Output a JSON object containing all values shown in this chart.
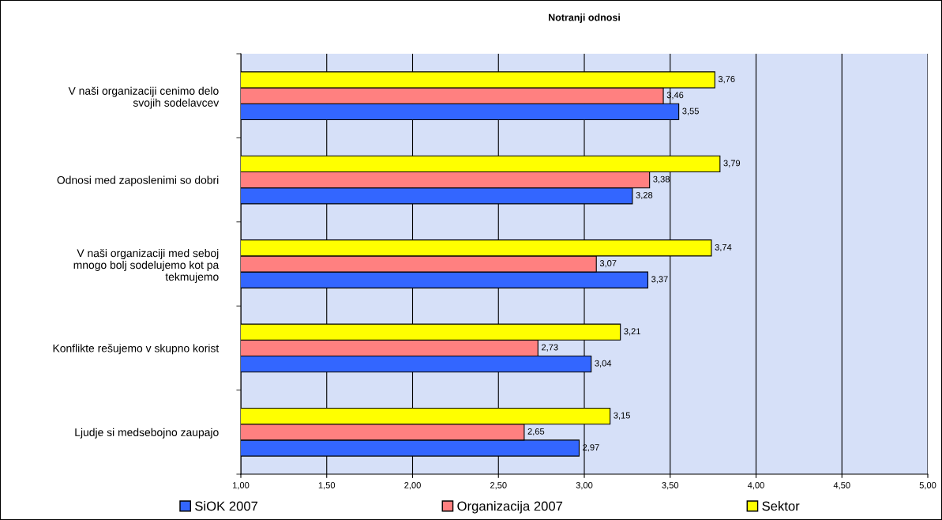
{
  "chart_data": {
    "type": "bar",
    "orientation": "horizontal",
    "title": "Notranji odnosi",
    "categories": [
      "V naši organizaciji cenimo delo\nsvojih sodelavcev",
      "Odnosi med zaposlenimi so dobri",
      "V naši organizaciji med seboj\nmnogo bolj sodelujemo kot pa\ntekmujemo",
      "Konflikte rešujemo v skupno korist",
      "Ljudje si medsebojno zaupajo"
    ],
    "series": [
      {
        "name": "SiOK 2007",
        "color": "#3366ff",
        "values": [
          3.55,
          3.28,
          3.37,
          3.04,
          2.97
        ],
        "value_labels": [
          "3,55",
          "3,28",
          "3,37",
          "3,04",
          "2,97"
        ]
      },
      {
        "name": "Organizacija 2007",
        "color": "#ff8080",
        "values": [
          3.46,
          3.38,
          3.07,
          2.73,
          2.65
        ],
        "value_labels": [
          "3,46",
          "3,38",
          "3,07",
          "2,73",
          "2,65"
        ]
      },
      {
        "name": "Sektor",
        "color": "#ffff00",
        "values": [
          3.76,
          3.79,
          3.74,
          3.21,
          3.15
        ],
        "value_labels": [
          "3,76",
          "3,79",
          "3,74",
          "3,21",
          "3,15"
        ]
      }
    ],
    "xlim": [
      1,
      5
    ],
    "xticks": [
      {
        "value": 1,
        "label": "1,00"
      },
      {
        "value": 1.5,
        "label": "1,50"
      },
      {
        "value": 2,
        "label": "2,00"
      },
      {
        "value": 2.5,
        "label": "2,50"
      },
      {
        "value": 3,
        "label": "3,00"
      },
      {
        "value": 3.5,
        "label": "3,50"
      },
      {
        "value": 4,
        "label": "4,00"
      },
      {
        "value": 4.5,
        "label": "4,50"
      },
      {
        "value": 5,
        "label": "5,00"
      }
    ],
    "grid": "x",
    "legend": "bottom"
  }
}
